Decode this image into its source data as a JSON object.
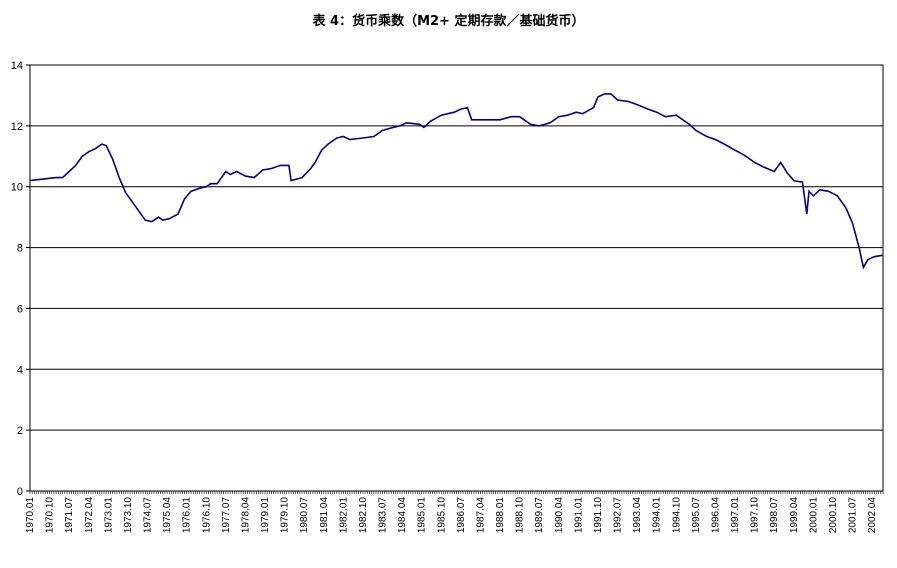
{
  "chart_data": {
    "type": "line",
    "title": "表 4：货币乘数（M2+ 定期存款／基础货币）",
    "xlabel": "",
    "ylabel": "",
    "ylim": [
      0,
      14
    ],
    "yticks": [
      "0",
      "2",
      "4",
      "6",
      "8",
      "10",
      "12",
      "14"
    ],
    "grid": "horizontal",
    "legend": "none",
    "line_color": "#00008b",
    "x_range": [
      "1970.01",
      "2002.09"
    ],
    "xticks": [
      "1970.01",
      "1970.10",
      "1971.07",
      "1972.04",
      "1973.01",
      "1973.10",
      "1974.07",
      "1975.04",
      "1976.01",
      "1976.10",
      "1977.07",
      "1978.04",
      "1979.01",
      "1979.10",
      "1980.07",
      "1981.04",
      "1982.01",
      "1982.10",
      "1983.07",
      "1984.04",
      "1985.01",
      "1985.10",
      "1986.07",
      "1987.04",
      "1988.01",
      "1988.10",
      "1989.07",
      "1990.04",
      "1991.01",
      "1991.10",
      "1992.07",
      "1993.04",
      "1994.01",
      "1994.10",
      "1995.07",
      "1996.04",
      "1997.01",
      "1997.10",
      "1998.07",
      "1999.04",
      "2000.01",
      "2000.10",
      "2001.07",
      "2002.04"
    ],
    "series": [
      {
        "points": [
          [
            "1970.01",
            10.2
          ],
          [
            "1970.07",
            10.25
          ],
          [
            "1971.01",
            10.3
          ],
          [
            "1971.04",
            10.3
          ],
          [
            "1971.07",
            10.5
          ],
          [
            "1971.10",
            10.7
          ],
          [
            "1972.01",
            11.0
          ],
          [
            "1972.04",
            11.15
          ],
          [
            "1972.07",
            11.25
          ],
          [
            "1972.10",
            11.4
          ],
          [
            "1972.12",
            11.35
          ],
          [
            "1973.03",
            10.9
          ],
          [
            "1973.06",
            10.3
          ],
          [
            "1973.09",
            9.8
          ],
          [
            "1973.12",
            9.5
          ],
          [
            "1974.03",
            9.2
          ],
          [
            "1974.06",
            8.9
          ],
          [
            "1974.09",
            8.85
          ],
          [
            "1974.12",
            9.0
          ],
          [
            "1975.02",
            8.9
          ],
          [
            "1975.05",
            8.95
          ],
          [
            "1975.09",
            9.1
          ],
          [
            "1975.12",
            9.6
          ],
          [
            "1976.03",
            9.85
          ],
          [
            "1976.07",
            9.95
          ],
          [
            "1976.10",
            10.0
          ],
          [
            "1976.12",
            10.1
          ],
          [
            "1977.03",
            10.1
          ],
          [
            "1977.05",
            10.3
          ],
          [
            "1977.07",
            10.5
          ],
          [
            "1977.09",
            10.4
          ],
          [
            "1977.12",
            10.5
          ],
          [
            "1978.04",
            10.35
          ],
          [
            "1978.08",
            10.3
          ],
          [
            "1978.12",
            10.55
          ],
          [
            "1979.04",
            10.6
          ],
          [
            "1979.08",
            10.7
          ],
          [
            "1979.12",
            10.7
          ],
          [
            "1980.01",
            10.2
          ],
          [
            "1980.06",
            10.3
          ],
          [
            "1980.10",
            10.6
          ],
          [
            "1980.12",
            10.8
          ],
          [
            "1981.03",
            11.2
          ],
          [
            "1981.06",
            11.4
          ],
          [
            "1981.10",
            11.6
          ],
          [
            "1982.01",
            11.65
          ],
          [
            "1982.04",
            11.55
          ],
          [
            "1982.10",
            11.6
          ],
          [
            "1983.03",
            11.65
          ],
          [
            "1983.07",
            11.85
          ],
          [
            "1983.12",
            11.95
          ],
          [
            "1984.03",
            12.0
          ],
          [
            "1984.06",
            12.1
          ],
          [
            "1984.12",
            12.05
          ],
          [
            "1985.02",
            11.95
          ],
          [
            "1985.05",
            12.15
          ],
          [
            "1985.10",
            12.35
          ],
          [
            "1986.01",
            12.4
          ],
          [
            "1986.04",
            12.45
          ],
          [
            "1986.07",
            12.55
          ],
          [
            "1986.10",
            12.6
          ],
          [
            "1986.12",
            12.2
          ],
          [
            "1987.04",
            12.2
          ],
          [
            "1987.08",
            12.2
          ],
          [
            "1988.01",
            12.2
          ],
          [
            "1988.06",
            12.3
          ],
          [
            "1988.10",
            12.3
          ],
          [
            "1989.03",
            12.05
          ],
          [
            "1989.07",
            12.0
          ],
          [
            "1989.12",
            12.1
          ],
          [
            "1990.04",
            12.3
          ],
          [
            "1990.08",
            12.35
          ],
          [
            "1990.12",
            12.45
          ],
          [
            "1991.03",
            12.4
          ],
          [
            "1991.08",
            12.6
          ],
          [
            "1991.10",
            12.95
          ],
          [
            "1992.01",
            13.05
          ],
          [
            "1992.04",
            13.05
          ],
          [
            "1992.07",
            12.85
          ],
          [
            "1992.12",
            12.8
          ],
          [
            "1993.04",
            12.7
          ],
          [
            "1993.09",
            12.55
          ],
          [
            "1994.01",
            12.45
          ],
          [
            "1994.05",
            12.3
          ],
          [
            "1994.10",
            12.35
          ],
          [
            "1995.01",
            12.2
          ],
          [
            "1995.04",
            12.05
          ],
          [
            "1995.07",
            11.85
          ],
          [
            "1995.12",
            11.65
          ],
          [
            "1996.04",
            11.55
          ],
          [
            "1996.08",
            11.4
          ],
          [
            "1997.01",
            11.2
          ],
          [
            "1997.05",
            11.05
          ],
          [
            "1997.10",
            10.8
          ],
          [
            "1998.02",
            10.65
          ],
          [
            "1998.07",
            10.5
          ],
          [
            "1998.10",
            10.8
          ],
          [
            "1999.01",
            10.45
          ],
          [
            "1999.04",
            10.2
          ],
          [
            "1999.08",
            10.15
          ],
          [
            "1999.10",
            9.1
          ],
          [
            "1999.11",
            9.85
          ],
          [
            "2000.01",
            9.7
          ],
          [
            "2000.04",
            9.9
          ],
          [
            "2000.08",
            9.85
          ],
          [
            "2000.12",
            9.7
          ],
          [
            "2001.04",
            9.3
          ],
          [
            "2001.07",
            8.8
          ],
          [
            "2001.10",
            8.0
          ],
          [
            "2001.12",
            7.35
          ],
          [
            "2002.02",
            7.6
          ],
          [
            "2002.05",
            7.7
          ],
          [
            "2002.09",
            7.75
          ]
        ]
      }
    ]
  }
}
